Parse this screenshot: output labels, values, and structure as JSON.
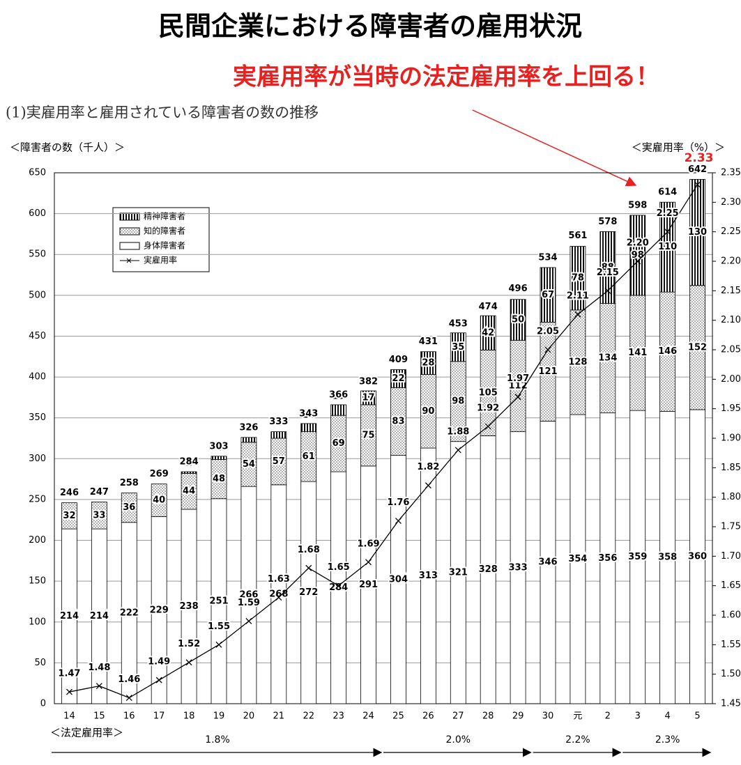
{
  "chart_data": {
    "type": "bar",
    "title": "民間企業における障害者の雇用状況",
    "annotation": "実雇用率が当時の法定雇用率を上回る！",
    "subtitle": "(1)実雇用率と雇用されている障害者の数の推移",
    "ylabel": "＜障害者の数（千人）＞",
    "y2label": "＜実雇用率（%）＞",
    "categories": [
      "14",
      "15",
      "16",
      "17",
      "18",
      "19",
      "20",
      "21",
      "22",
      "23",
      "24",
      "25",
      "26",
      "27",
      "28",
      "29",
      "30",
      "元",
      "2",
      "3",
      "4",
      "5"
    ],
    "series": [
      {
        "name": "身体障害者",
        "fill": "white",
        "values": [
          214,
          214,
          222,
          229,
          238,
          251,
          266,
          268,
          272,
          284,
          291,
          304,
          313,
          321,
          328,
          333,
          346,
          354,
          356,
          359,
          358,
          360
        ]
      },
      {
        "name": "知的障害者",
        "fill": "dots",
        "values": [
          32,
          33,
          36,
          40,
          44,
          48,
          54,
          57,
          61,
          69,
          75,
          83,
          90,
          98,
          105,
          112,
          121,
          128,
          134,
          141,
          146,
          152
        ]
      },
      {
        "name": "精神障害者",
        "fill": "stripes",
        "values": [
          null,
          null,
          null,
          null,
          2,
          4,
          6,
          8,
          10,
          13,
          17,
          22,
          28,
          35,
          42,
          50,
          67,
          78,
          88,
          98,
          110,
          130
        ]
      },
      {
        "name": "実雇用率",
        "type": "line",
        "axis": "y2",
        "color": "#000000",
        "values": [
          1.47,
          1.48,
          1.46,
          1.49,
          1.52,
          1.55,
          1.59,
          1.63,
          1.68,
          1.65,
          1.69,
          1.76,
          1.82,
          1.88,
          1.92,
          1.97,
          2.05,
          2.11,
          2.15,
          2.2,
          2.25,
          2.33
        ],
        "value_labels": [
          "1.47",
          "1.48",
          "1.46",
          "1.49",
          "1.52",
          "1.55",
          "1.59",
          "1.63",
          "1.68",
          "1.65",
          "1.69",
          "1.76",
          "1.82",
          "1.88",
          "1.92",
          "1.97",
          "2.05",
          "2.11",
          "2.15",
          "2.20",
          "2.25",
          "2.33"
        ],
        "highlight": {
          "index": 21,
          "color": "#e8201f"
        }
      }
    ],
    "totals": [
      246,
      247,
      258,
      269,
      284,
      303,
      326,
      333,
      343,
      366,
      382,
      409,
      431,
      453,
      474,
      496,
      534,
      561,
      578,
      598,
      614,
      642
    ],
    "ylim": [
      0,
      650
    ],
    "yticks": [
      0,
      50,
      100,
      150,
      200,
      250,
      300,
      350,
      400,
      450,
      500,
      550,
      600,
      650
    ],
    "y2lim": [
      1.45,
      2.35
    ],
    "y2ticks": [
      1.45,
      {
        "value": 1.5,
        "label": "1.50"
      },
      1.55,
      {
        "value": 1.6,
        "label": "1.60"
      },
      1.65,
      {
        "value": 1.7,
        "label": "1.70"
      },
      1.75,
      {
        "value": 1.8,
        "label": "1.80"
      },
      1.85,
      {
        "value": 1.9,
        "label": "1.90"
      },
      1.95,
      {
        "value": 2,
        "label": "2.00"
      },
      2.05,
      {
        "value": 2.1,
        "label": "2.10"
      },
      2.15,
      {
        "value": 2.2,
        "label": "2.20"
      },
      2.25,
      {
        "value": 2.3,
        "label": "2.30"
      },
      2.35
    ],
    "grid": true,
    "periods_label": "＜法定雇用率＞",
    "periods": [
      {
        "label": "1.8%",
        "from": 0,
        "to": 10
      },
      {
        "label": "2.0%",
        "from": 11,
        "to": 15
      },
      {
        "label": "2.2%",
        "from": 16,
        "to": 18
      },
      {
        "label": "2.3%",
        "from": 19,
        "to": 21
      }
    ]
  }
}
